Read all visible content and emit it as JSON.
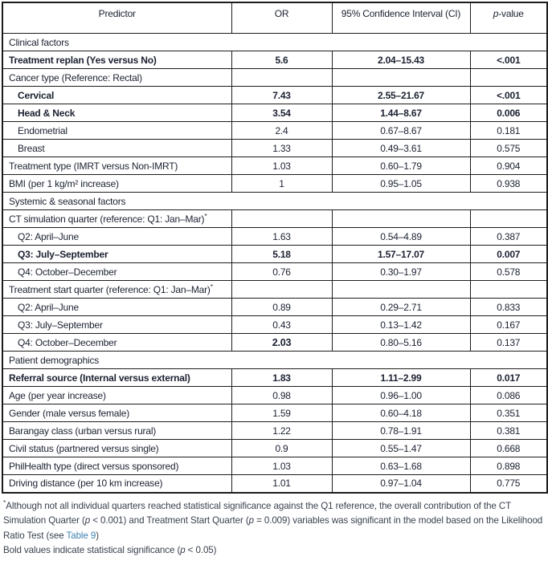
{
  "header": {
    "predictor": "Predictor",
    "or": "OR",
    "ci": "95% Confidence Interval (CI)",
    "p_italic": "p",
    "p_rest": "-value"
  },
  "rows": [
    {
      "type": "section",
      "label": "Clinical factors"
    },
    {
      "type": "data",
      "label": "Treatment replan (Yes versus No)",
      "indent": false,
      "bold": true,
      "or": "5.6",
      "ci": "2.04–15.43",
      "p": "<.001"
    },
    {
      "type": "group",
      "label": "Cancer type (Reference: Rectal)",
      "label_sup": ""
    },
    {
      "type": "data",
      "label": "Cervical",
      "indent": true,
      "bold": true,
      "or": "7.43",
      "ci": "2.55–21.67",
      "p": "<.001"
    },
    {
      "type": "data",
      "label": "Head & Neck",
      "indent": true,
      "bold": true,
      "or": "3.54",
      "ci": "1.44–8.67",
      "p": "0.006"
    },
    {
      "type": "data",
      "label": "Endometrial",
      "indent": true,
      "bold": false,
      "or": "2.4",
      "ci": "0.67–8.67",
      "p": "0.181"
    },
    {
      "type": "data",
      "label": "Breast",
      "indent": true,
      "bold": false,
      "or": "1.33",
      "ci": "0.49–3.61",
      "p": "0.575"
    },
    {
      "type": "data",
      "label": "Treatment type (IMRT versus Non-IMRT)",
      "indent": false,
      "bold": false,
      "or": "1.03",
      "ci": "0.60–1.79",
      "p": "0.904"
    },
    {
      "type": "data",
      "label": "BMI (per 1 kg/m² increase)",
      "indent": false,
      "bold": false,
      "or": "1",
      "ci": "0.95–1.05",
      "p": "0.938"
    },
    {
      "type": "section",
      "label": "Systemic & seasonal factors"
    },
    {
      "type": "group",
      "label": "CT simulation quarter (reference: Q1: Jan–Mar)",
      "label_sup": "*"
    },
    {
      "type": "data",
      "label": "Q2: April–June",
      "indent": true,
      "bold": false,
      "or": "1.63",
      "ci": "0.54–4.89",
      "p": "0.387"
    },
    {
      "type": "data",
      "label": "Q3: July–September",
      "indent": true,
      "bold": true,
      "or": "5.18",
      "ci": "1.57–17.07",
      "p": "0.007"
    },
    {
      "type": "data",
      "label": "Q4: October–December",
      "indent": true,
      "bold": false,
      "or": "0.76",
      "ci": "0.30–1.97",
      "p": "0.578"
    },
    {
      "type": "group",
      "label": "Treatment start quarter (reference: Q1: Jan–Mar)",
      "label_sup": "*"
    },
    {
      "type": "data",
      "label": "Q2: April–June",
      "indent": true,
      "bold": false,
      "or": "0.89",
      "ci": "0.29–2.71",
      "p": "0.833"
    },
    {
      "type": "data",
      "label": "Q3: July–September",
      "indent": true,
      "bold": false,
      "or": "0.43",
      "ci": "0.13–1.42",
      "p": "0.167"
    },
    {
      "type": "data",
      "label": "Q4: October–December",
      "indent": true,
      "bold": false,
      "or": "2.03",
      "or_emph": true,
      "ci": "0.80–5.16",
      "p": "0.137"
    },
    {
      "type": "section",
      "label": "Patient demographics"
    },
    {
      "type": "data",
      "label": "Referral source (Internal versus external)",
      "indent": false,
      "bold": true,
      "or": "1.83",
      "ci": "1.11–2.99",
      "p": "0.017"
    },
    {
      "type": "data",
      "label": "Age (per year increase)",
      "indent": false,
      "bold": false,
      "or": "0.98",
      "ci": "0.96–1.00",
      "p": "0.086"
    },
    {
      "type": "data",
      "label": "Gender (male versus female)",
      "indent": false,
      "bold": false,
      "or": "1.59",
      "ci": "0.60–4.18",
      "p": "0.351"
    },
    {
      "type": "data",
      "label": "Barangay class (urban versus rural)",
      "indent": false,
      "bold": false,
      "or": "1.22",
      "ci": "0.78–1.91",
      "p": "0.381"
    },
    {
      "type": "data",
      "label": "Civil status (partnered versus single)",
      "indent": false,
      "bold": false,
      "or": "0.9",
      "ci": "0.55–1.47",
      "p": "0.668"
    },
    {
      "type": "data",
      "label": "PhilHealth type (direct versus sponsored)",
      "indent": false,
      "bold": false,
      "or": "1.03",
      "ci": "0.63–1.68",
      "p": "0.898"
    },
    {
      "type": "data",
      "label": "Driving distance (per 10 km increase)",
      "indent": false,
      "bold": false,
      "or": "1.01",
      "ci": "0.97–1.04",
      "p": "0.775"
    }
  ],
  "footnotes": {
    "line1_parts": [
      {
        "t": "sup",
        "text": "*"
      },
      {
        "t": "text",
        "text": "Although not all individual quarters reached statistical significance against the Q1 reference, the overall contribution of the CT Simulation Quarter ("
      },
      {
        "t": "italic",
        "text": "p"
      },
      {
        "t": "text",
        "text": " < 0.001) and Treatment Start Quarter ("
      },
      {
        "t": "italic",
        "text": "p"
      },
      {
        "t": "text",
        "text": " = 0.009) variables was significant in the model based on the Likelihood Ratio Test (see "
      },
      {
        "t": "link",
        "text": "Table 9"
      },
      {
        "t": "text",
        "text": ")"
      }
    ],
    "line2_parts": [
      {
        "t": "text",
        "text": "Bold values indicate statistical significance ("
      },
      {
        "t": "italic",
        "text": "p"
      },
      {
        "t": "text",
        "text": " < 0.05)"
      }
    ]
  },
  "colors": {
    "border": "#1c1c1c",
    "text": "#1b2130",
    "footnote_text": "#39414e",
    "link": "#3e82ae"
  }
}
